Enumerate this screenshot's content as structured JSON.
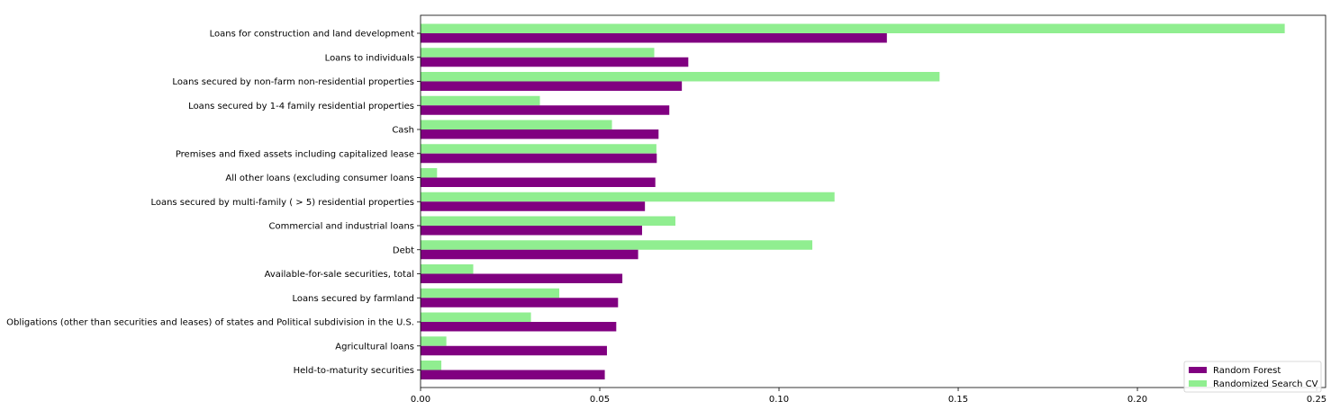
{
  "chart_data": {
    "type": "bar",
    "orientation": "horizontal",
    "categories": [
      "Loans for construction and land development",
      "Loans to individuals",
      "Loans secured by non-farm non-residential properties",
      "Loans secured by 1-4 family residential properties",
      "Cash",
      "Premises and fixed assets including capitalized lease",
      "All other loans (excluding consumer loans",
      "Loans secured by multi-family ( > 5) residential properties",
      "Commercial and industrial loans",
      "Debt",
      "Available-for-sale securities, total",
      "Loans secured by farmland",
      "Obligations (other than securities and leases) of states and Political subdivision in the U.S.",
      "Agricultural loans",
      "Held-to-maturity securities"
    ],
    "series": [
      {
        "name": "Random Forest",
        "color": "#800080",
        "values": [
          0.1301,
          0.0747,
          0.0729,
          0.0694,
          0.0664,
          0.0659,
          0.0655,
          0.0626,
          0.0618,
          0.0607,
          0.0563,
          0.0551,
          0.0546,
          0.052,
          0.0514
        ]
      },
      {
        "name": "Randomized Search CV",
        "color": "#90ee90",
        "values": [
          0.2411,
          0.0652,
          0.1448,
          0.0333,
          0.0534,
          0.0658,
          0.0046,
          0.1155,
          0.0711,
          0.1093,
          0.0147,
          0.0387,
          0.0308,
          0.0072,
          0.0058
        ]
      }
    ],
    "xlim": [
      0,
      0.2525
    ],
    "xticks": [
      0.0,
      0.05,
      0.1,
      0.15,
      0.2,
      0.25
    ],
    "xtick_labels": [
      "0.00",
      "0.05",
      "0.10",
      "0.15",
      "0.20",
      "0.25"
    ],
    "grid": false,
    "legend_position": "lower-right",
    "title": "",
    "xlabel": "",
    "ylabel": ""
  }
}
